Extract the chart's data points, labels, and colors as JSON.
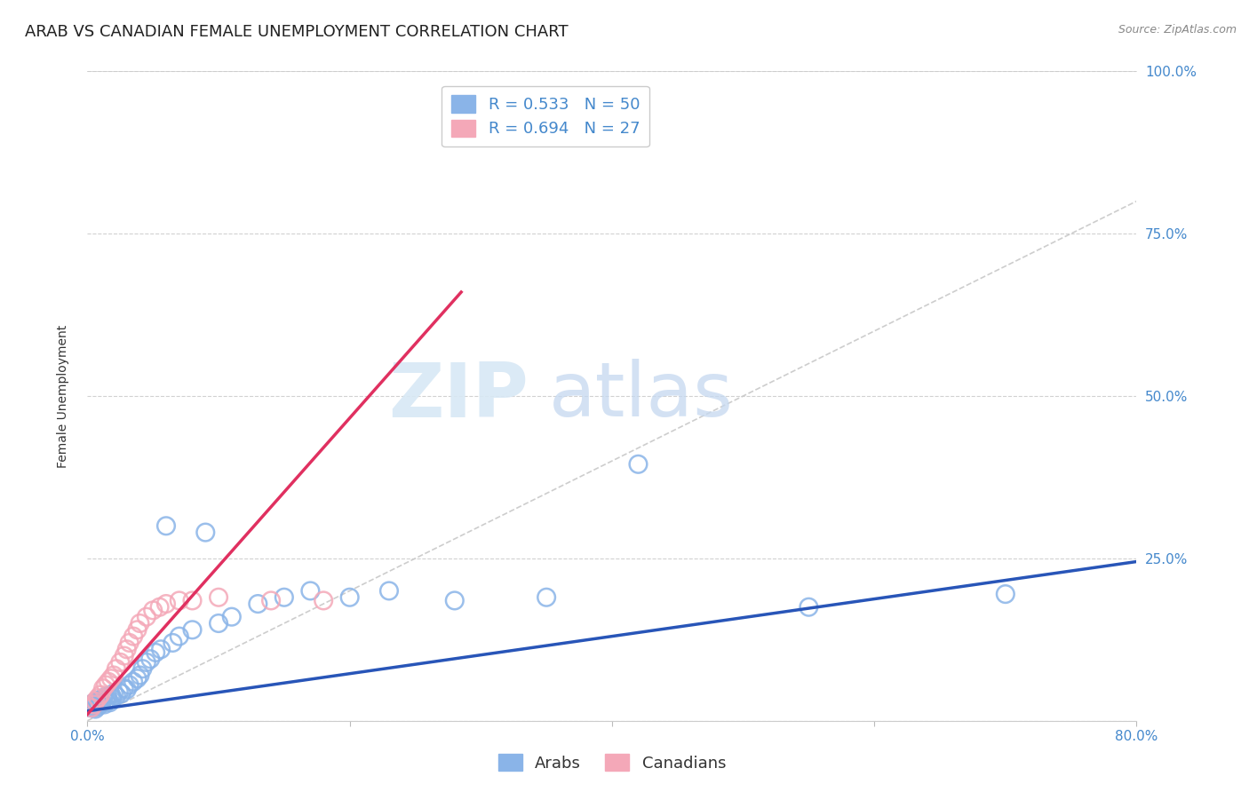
{
  "title": "ARAB VS CANADIAN FEMALE UNEMPLOYMENT CORRELATION CHART",
  "source": "Source: ZipAtlas.com",
  "ylabel": "Female Unemployment",
  "xlim": [
    0.0,
    0.8
  ],
  "ylim": [
    0.0,
    1.0
  ],
  "xtick_positions": [
    0.0,
    0.2,
    0.4,
    0.6,
    0.8
  ],
  "xtick_labels": [
    "0.0%",
    "",
    "",
    "",
    "80.0%"
  ],
  "ytick_positions": [
    0.0,
    0.25,
    0.5,
    0.75,
    1.0
  ],
  "ytick_labels_right": [
    "",
    "25.0%",
    "50.0%",
    "75.0%",
    "100.0%"
  ],
  "arab_color": "#8ab4e8",
  "canadian_color": "#f4a8b8",
  "arab_R": 0.533,
  "arab_N": 50,
  "canadian_R": 0.694,
  "canadian_N": 27,
  "diagonal_color": "#c8c8c8",
  "arab_line_color": "#2855b8",
  "canadian_line_color": "#e03060",
  "background_color": "#ffffff",
  "title_fontsize": 13,
  "axis_label_fontsize": 10,
  "tick_fontsize": 11,
  "tick_color": "#4488cc",
  "legend_fontsize": 13,
  "arab_line_x": [
    0.0,
    0.8
  ],
  "arab_line_y": [
    0.015,
    0.245
  ],
  "canadian_line_x": [
    0.0,
    0.285
  ],
  "canadian_line_y": [
    0.01,
    0.66
  ],
  "arab_points_x": [
    0.002,
    0.003,
    0.004,
    0.005,
    0.006,
    0.007,
    0.008,
    0.009,
    0.01,
    0.011,
    0.012,
    0.013,
    0.014,
    0.015,
    0.016,
    0.017,
    0.018,
    0.019,
    0.02,
    0.022,
    0.024,
    0.026,
    0.028,
    0.03,
    0.032,
    0.035,
    0.038,
    0.04,
    0.042,
    0.045,
    0.048,
    0.052,
    0.056,
    0.06,
    0.065,
    0.07,
    0.08,
    0.09,
    0.1,
    0.11,
    0.13,
    0.15,
    0.17,
    0.2,
    0.23,
    0.28,
    0.35,
    0.42,
    0.55,
    0.7
  ],
  "arab_points_y": [
    0.02,
    0.025,
    0.022,
    0.028,
    0.018,
    0.03,
    0.022,
    0.025,
    0.032,
    0.028,
    0.035,
    0.025,
    0.03,
    0.038,
    0.032,
    0.028,
    0.04,
    0.035,
    0.042,
    0.038,
    0.045,
    0.042,
    0.05,
    0.048,
    0.055,
    0.06,
    0.065,
    0.07,
    0.08,
    0.09,
    0.095,
    0.105,
    0.11,
    0.3,
    0.12,
    0.13,
    0.14,
    0.29,
    0.15,
    0.16,
    0.18,
    0.19,
    0.2,
    0.19,
    0.2,
    0.185,
    0.19,
    0.395,
    0.175,
    0.195
  ],
  "canadian_points_x": [
    0.003,
    0.005,
    0.006,
    0.008,
    0.01,
    0.012,
    0.014,
    0.016,
    0.018,
    0.02,
    0.022,
    0.025,
    0.028,
    0.03,
    0.032,
    0.035,
    0.038,
    0.04,
    0.045,
    0.05,
    0.055,
    0.06,
    0.07,
    0.08,
    0.1,
    0.14,
    0.18
  ],
  "canadian_points_y": [
    0.02,
    0.025,
    0.03,
    0.035,
    0.04,
    0.05,
    0.055,
    0.06,
    0.065,
    0.07,
    0.08,
    0.09,
    0.1,
    0.11,
    0.12,
    0.13,
    0.14,
    0.15,
    0.16,
    0.17,
    0.175,
    0.18,
    0.185,
    0.185,
    0.19,
    0.185,
    0.185
  ]
}
